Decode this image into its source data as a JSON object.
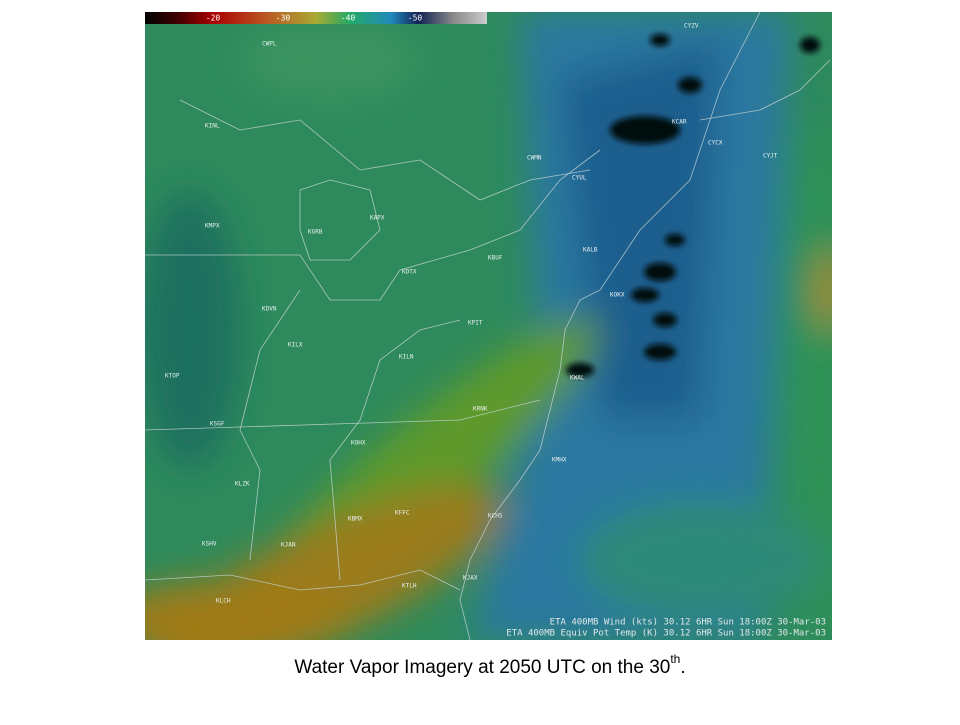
{
  "colorbar": {
    "ticks": [
      -20,
      -30,
      -40,
      -50
    ]
  },
  "stations": [
    "CWPL",
    "CYZV",
    "KINL",
    "CWMN",
    "CYUL",
    "KCAR",
    "CYCX",
    "CYJT",
    "KMPX",
    "KGRB",
    "KAPX",
    "KBUF",
    "KALB",
    "KDTX",
    "KDVN",
    "KPIT",
    "KOKX",
    "KILX",
    "KILN",
    "KTOP",
    "KRNK",
    "KWAL",
    "KSGF",
    "KOHX",
    "KMHX",
    "KLZK",
    "KBMX",
    "KFFC",
    "KCHS",
    "KSHV",
    "KJAN",
    "KLCH",
    "KTLH",
    "KJAX"
  ],
  "footer_lines": [
    "ETA 400MB Wind (kts) 30.12   6HR Sun 18:00Z 30-Mar-03",
    "ETA 400MB Equiv Pot Temp (K) 30.12   6HR Sun 18:00Z 30-Mar-03"
  ],
  "caption": {
    "main": "Water Vapor Imagery at 2050 UTC on the 30",
    "superscript": "th",
    "end": "."
  }
}
